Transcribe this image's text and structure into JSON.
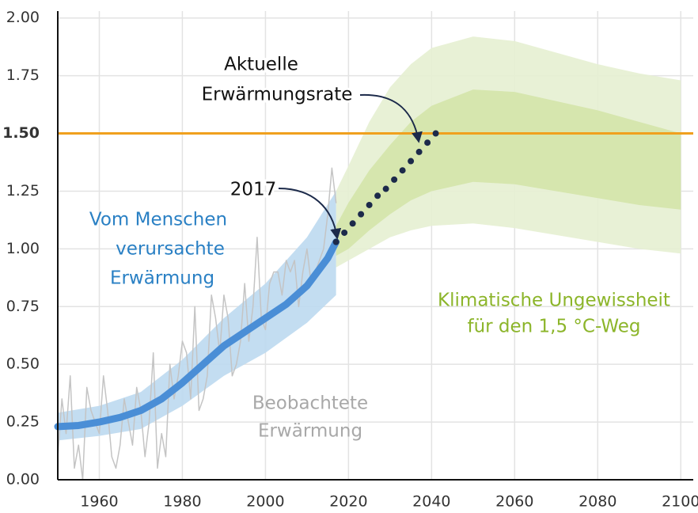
{
  "chart_data": {
    "type": "line",
    "xlim": [
      1950,
      2103
    ],
    "ylim": [
      0,
      2.03
    ],
    "xticks": [
      1960,
      1980,
      2000,
      2020,
      2040,
      2060,
      2080,
      2100
    ],
    "yticks": [
      {
        "value": 0,
        "label": "0.00"
      },
      {
        "value": 0.25,
        "label": "0.25"
      },
      {
        "value": 0.5,
        "label": "0.50"
      },
      {
        "value": 0.75,
        "label": "0.75"
      },
      {
        "value": 1,
        "label": "1.00"
      },
      {
        "value": 1.25,
        "label": "1.25"
      },
      {
        "value": 1.5,
        "label": "1.50"
      },
      {
        "value": 1.75,
        "label": "1.75"
      },
      {
        "value": 2,
        "label": "2.00"
      }
    ],
    "grid": true,
    "threshold": {
      "value": 1.5,
      "color": "#f0a01e"
    },
    "bands": [
      {
        "color": "#e6efd2",
        "x": [
          2017,
          2020,
          2025,
          2030,
          2035,
          2040,
          2050,
          2060,
          2070,
          2080,
          2090,
          2100
        ],
        "lower": [
          0.92,
          0.95,
          1.0,
          1.05,
          1.08,
          1.1,
          1.11,
          1.09,
          1.06,
          1.03,
          1.0,
          0.98
        ],
        "upper": [
          1.25,
          1.36,
          1.55,
          1.7,
          1.8,
          1.87,
          1.92,
          1.9,
          1.85,
          1.8,
          1.76,
          1.73
        ]
      },
      {
        "color": "#d4e4aa",
        "x": [
          2017,
          2020,
          2025,
          2030,
          2035,
          2040,
          2050,
          2060,
          2070,
          2080,
          2090,
          2100
        ],
        "lower": [
          0.97,
          1.0,
          1.08,
          1.15,
          1.21,
          1.25,
          1.29,
          1.28,
          1.25,
          1.22,
          1.19,
          1.17
        ],
        "upper": [
          1.1,
          1.2,
          1.34,
          1.45,
          1.55,
          1.62,
          1.69,
          1.68,
          1.64,
          1.6,
          1.55,
          1.5
        ]
      },
      {
        "color": "#bcd9f0",
        "x": [
          1950,
          1960,
          1970,
          1980,
          1990,
          2000,
          2010,
          2017
        ],
        "lower": [
          0.17,
          0.19,
          0.22,
          0.32,
          0.45,
          0.55,
          0.68,
          0.8
        ],
        "upper": [
          0.29,
          0.32,
          0.38,
          0.52,
          0.7,
          0.85,
          1.05,
          1.25
        ]
      }
    ],
    "series": [
      {
        "color": "#c4c4c4",
        "x": [
          1950,
          1951,
          1952,
          1953,
          1954,
          1955,
          1956,
          1957,
          1958,
          1959,
          1960,
          1961,
          1962,
          1963,
          1964,
          1965,
          1966,
          1967,
          1968,
          1969,
          1970,
          1971,
          1972,
          1973,
          1974,
          1975,
          1976,
          1977,
          1978,
          1979,
          1980,
          1981,
          1982,
          1983,
          1984,
          1985,
          1986,
          1987,
          1988,
          1989,
          1990,
          1991,
          1992,
          1993,
          1994,
          1995,
          1996,
          1997,
          1998,
          1999,
          2000,
          2001,
          2002,
          2003,
          2004,
          2005,
          2006,
          2007,
          2008,
          2009,
          2010,
          2011,
          2012,
          2013,
          2014,
          2015,
          2016,
          2017
        ],
        "values": [
          0.1,
          0.35,
          0.2,
          0.45,
          0.05,
          0.15,
          0.0,
          0.4,
          0.3,
          0.25,
          0.2,
          0.45,
          0.3,
          0.1,
          0.05,
          0.15,
          0.35,
          0.25,
          0.15,
          0.4,
          0.3,
          0.1,
          0.25,
          0.55,
          0.05,
          0.2,
          0.1,
          0.5,
          0.35,
          0.45,
          0.6,
          0.55,
          0.35,
          0.75,
          0.3,
          0.35,
          0.45,
          0.8,
          0.7,
          0.55,
          0.8,
          0.7,
          0.45,
          0.5,
          0.6,
          0.85,
          0.6,
          0.75,
          1.05,
          0.7,
          0.65,
          0.85,
          0.9,
          0.9,
          0.8,
          0.95,
          0.9,
          0.95,
          0.75,
          0.9,
          1.0,
          0.85,
          0.9,
          0.95,
          1.0,
          1.15,
          1.35,
          1.2
        ]
      },
      {
        "color": "#4a8ed6",
        "x": [
          1950,
          1955,
          1960,
          1965,
          1970,
          1975,
          1980,
          1985,
          1990,
          1995,
          2000,
          2005,
          2010,
          2015,
          2017
        ],
        "values": [
          0.23,
          0.235,
          0.25,
          0.27,
          0.3,
          0.35,
          0.42,
          0.5,
          0.58,
          0.64,
          0.7,
          0.76,
          0.84,
          0.96,
          1.03
        ]
      },
      {
        "color": "#1c2a4a",
        "style": "dots",
        "x": [
          2017,
          2019,
          2021,
          2023,
          2025,
          2027,
          2029,
          2031,
          2033,
          2035,
          2037,
          2039,
          2041
        ],
        "values": [
          1.03,
          1.07,
          1.11,
          1.15,
          1.19,
          1.23,
          1.26,
          1.3,
          1.34,
          1.38,
          1.42,
          1.46,
          1.5
        ]
      }
    ],
    "annotations": [
      {
        "lines": [
          "Aktuelle",
          "Erwärmungsrate"
        ],
        "color": "#111111"
      },
      {
        "lines": [
          "2017"
        ],
        "color": "#111111"
      },
      {
        "lines": [
          "Vom Menschen",
          "verursachte",
          "Erwärmung"
        ],
        "color": "#2a80c4"
      },
      {
        "lines": [
          "Klimatische Ungewissheit",
          "für den 1,5 °C-Weg"
        ],
        "color": "#8cb52a"
      },
      {
        "lines": [
          "Beobachtete",
          "Erwärmung"
        ],
        "color": "#a8a8a8"
      }
    ]
  }
}
